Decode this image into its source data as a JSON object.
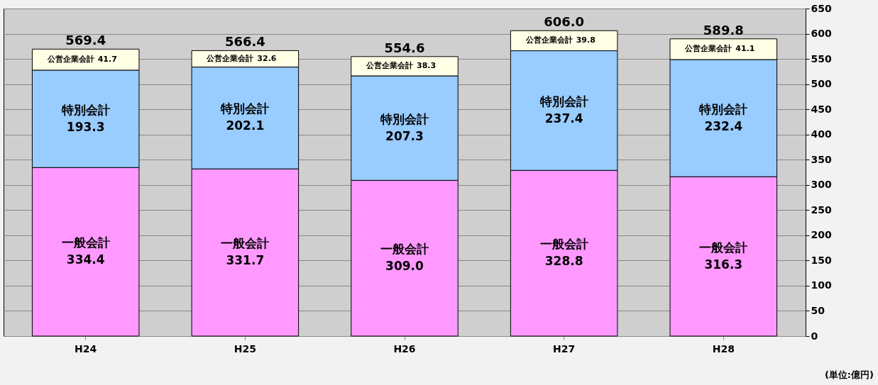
{
  "chart_data": {
    "type": "bar",
    "stacked": true,
    "categories": [
      "H24",
      "H25",
      "H26",
      "H27",
      "H28"
    ],
    "series": [
      {
        "name": "一般会計",
        "color": "#ff99ff",
        "values": [
          334.4,
          331.7,
          309.0,
          328.8,
          316.3
        ],
        "value_labels": [
          "334.4",
          "331.7",
          "309.0",
          "328.8",
          "316.3"
        ]
      },
      {
        "name": "特別会計",
        "color": "#99ccff",
        "values": [
          193.3,
          202.1,
          207.3,
          237.4,
          232.4
        ],
        "value_labels": [
          "193.3",
          "202.1",
          "207.3",
          "237.4",
          "232.4"
        ]
      },
      {
        "name": "公営企業会計",
        "color": "#ffffe6",
        "values": [
          41.7,
          32.6,
          38.3,
          39.8,
          41.1
        ],
        "value_labels": [
          "41.7",
          "32.6",
          "38.3",
          "39.8",
          "41.1"
        ]
      }
    ],
    "totals": [
      "569.4",
      "566.4",
      "554.6",
      "606.0",
      "589.8"
    ],
    "ylim": [
      0,
      650
    ],
    "yticks": [
      0,
      50,
      100,
      150,
      200,
      250,
      300,
      350,
      400,
      450,
      500,
      550,
      600,
      650
    ],
    "grid": "y",
    "legend": false,
    "annotations": [
      "(単位:億円)"
    ]
  }
}
